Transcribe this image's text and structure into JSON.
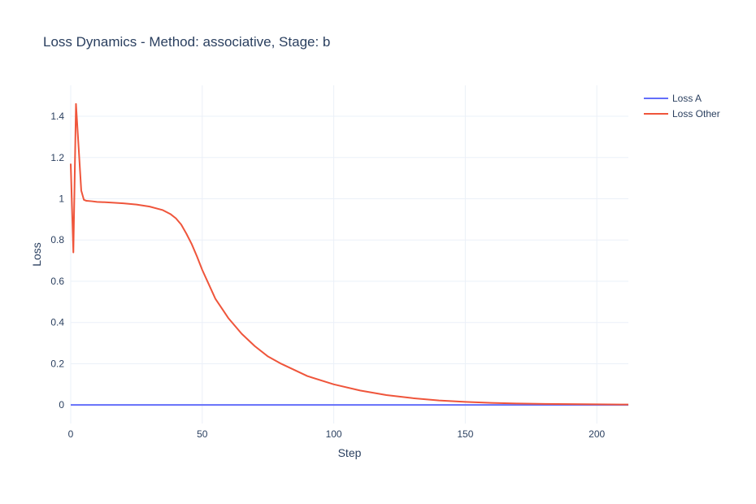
{
  "chart_data": {
    "type": "line",
    "title": "Loss Dynamics - Method: associative, Stage: b",
    "xlabel": "Step",
    "ylabel": "Loss",
    "xlim": [
      0,
      212
    ],
    "ylim": [
      -0.09,
      1.55
    ],
    "x_ticks": [
      0,
      50,
      100,
      150,
      200
    ],
    "x_tick_labels": [
      "0",
      "50",
      "100",
      "150",
      "200"
    ],
    "y_ticks": [
      0,
      0.2,
      0.4,
      0.6,
      0.8,
      1,
      1.2,
      1.4
    ],
    "y_tick_labels": [
      "0",
      "0.2",
      "0.4",
      "0.6",
      "0.8",
      "1",
      "1.2",
      "1.4"
    ],
    "grid": true,
    "legend_position": "top-right",
    "series": [
      {
        "name": "Loss A",
        "color": "#636efa",
        "x": [
          0,
          212
        ],
        "y": [
          0,
          0
        ]
      },
      {
        "name": "Loss Other",
        "color": "#ef553b",
        "x": [
          0,
          1,
          2,
          3,
          4,
          5,
          6,
          8,
          10,
          15,
          20,
          25,
          30,
          35,
          38,
          40,
          42,
          44,
          46,
          48,
          50,
          55,
          60,
          65,
          70,
          75,
          80,
          90,
          100,
          110,
          120,
          130,
          140,
          150,
          160,
          170,
          180,
          190,
          200,
          212
        ],
        "y": [
          1.17,
          0.74,
          1.46,
          1.25,
          1.04,
          0.995,
          0.99,
          0.988,
          0.985,
          0.982,
          0.978,
          0.972,
          0.962,
          0.945,
          0.925,
          0.905,
          0.875,
          0.83,
          0.78,
          0.72,
          0.655,
          0.515,
          0.42,
          0.345,
          0.285,
          0.235,
          0.2,
          0.14,
          0.1,
          0.07,
          0.048,
          0.033,
          0.022,
          0.015,
          0.01,
          0.007,
          0.005,
          0.004,
          0.003,
          0.002
        ]
      }
    ]
  }
}
